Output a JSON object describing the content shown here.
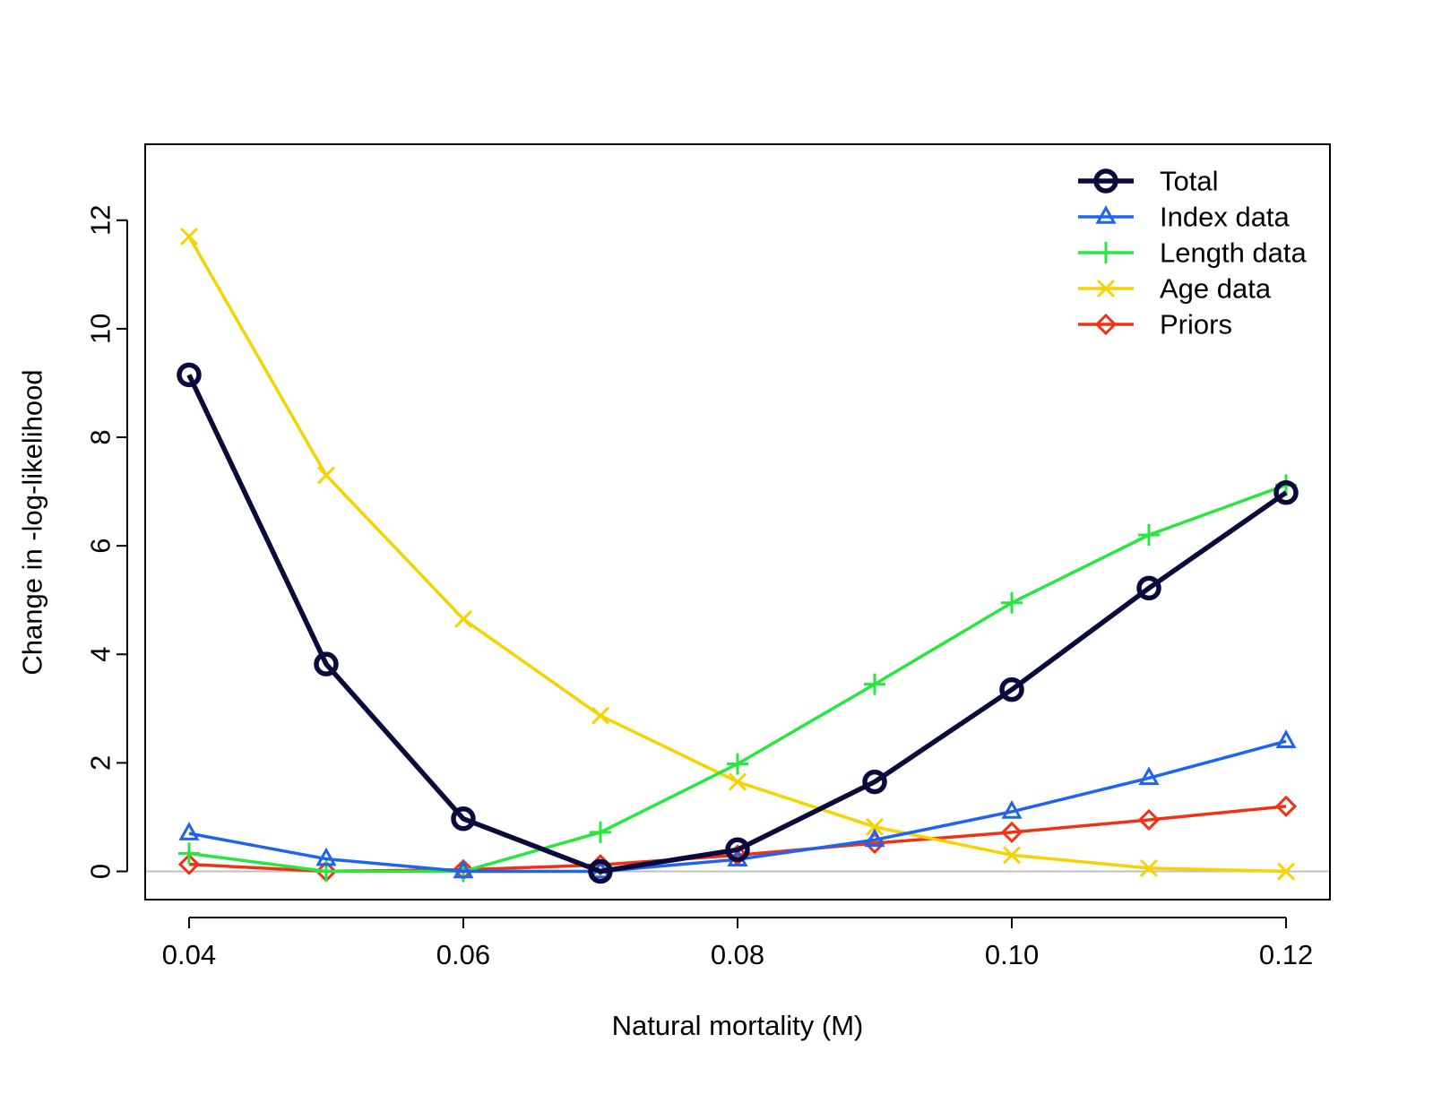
{
  "chart_data": {
    "type": "line",
    "title": "",
    "xlabel": "Natural mortality (M)",
    "ylabel": "Change in -log-likelihood",
    "xlim": [
      0.0368,
      0.1232
    ],
    "ylim": [
      -0.52,
      13.4
    ],
    "x_ticks": [
      "0.04",
      "0.06",
      "0.08",
      "0.10",
      "0.12"
    ],
    "x_tick_values": [
      0.04,
      0.06,
      0.08,
      0.1,
      0.12
    ],
    "y_ticks": [
      "0",
      "2",
      "4",
      "6",
      "8",
      "10",
      "12"
    ],
    "y_tick_values": [
      0,
      2,
      4,
      6,
      8,
      10,
      12
    ],
    "reference_line": {
      "y": 0,
      "color": "#c0c0c0"
    },
    "legend_position": "top-right",
    "grid": false,
    "x": [
      0.04,
      0.05,
      0.06,
      0.07,
      0.08,
      0.09,
      0.1,
      0.11,
      0.12
    ],
    "series": [
      {
        "name": "Total",
        "color": "#0a0a3c",
        "marker": "circle",
        "line_width": 5.5,
        "marker_size": 11,
        "values": [
          9.15,
          3.82,
          0.97,
          0.0,
          0.4,
          1.65,
          3.35,
          5.22,
          6.98
        ]
      },
      {
        "name": "Index data",
        "color": "#1e64f0",
        "marker": "triangle",
        "line_width": 3.5,
        "marker_size": 9,
        "values": [
          0.7,
          0.23,
          0.0,
          0.0,
          0.22,
          0.58,
          1.1,
          1.72,
          2.4
        ]
      },
      {
        "name": "Length data",
        "color": "#28e640",
        "marker": "plus",
        "line_width": 3.5,
        "marker_size": 12,
        "values": [
          0.33,
          0.0,
          0.0,
          0.72,
          1.98,
          3.45,
          4.95,
          6.2,
          7.12
        ]
      },
      {
        "name": "Age data",
        "color": "#f5d200",
        "marker": "x",
        "line_width": 3.5,
        "marker_size": 9,
        "values": [
          11.7,
          7.3,
          4.65,
          2.87,
          1.65,
          0.82,
          0.3,
          0.06,
          0.0
        ]
      },
      {
        "name": "Priors",
        "color": "#f03214",
        "marker": "diamond",
        "line_width": 3.5,
        "marker_size": 10,
        "values": [
          0.13,
          0.0,
          0.03,
          0.12,
          0.3,
          0.52,
          0.72,
          0.95,
          1.2
        ]
      }
    ]
  }
}
